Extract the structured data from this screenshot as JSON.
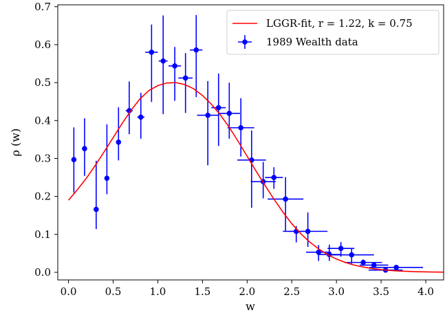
{
  "chart_data": {
    "type": "scatter",
    "xlabel": "w",
    "ylabel": "ρ (w)",
    "xlim": [
      -0.12,
      4.2
    ],
    "ylim": [
      -0.02,
      0.705
    ],
    "xticks": [
      0.0,
      0.5,
      1.0,
      1.5,
      2.0,
      2.5,
      3.0,
      3.5,
      4.0
    ],
    "xtick_labels": [
      "0.0",
      "0.5",
      "1.0",
      "1.5",
      "2.0",
      "2.5",
      "3.0",
      "3.5",
      "4.0"
    ],
    "yticks": [
      0.0,
      0.1,
      0.2,
      0.3,
      0.4,
      0.5,
      0.6,
      0.7
    ],
    "ytick_labels": [
      "0.0",
      "0.1",
      "0.2",
      "0.3",
      "0.4",
      "0.5",
      "0.6",
      "0.7"
    ],
    "grid": false,
    "legend_position": "top-right",
    "series": [
      {
        "name": "LGGR-fit, r = 1.22, k = 0.75",
        "kind": "line",
        "color": "#ff0000",
        "x": [
          0.0,
          0.1,
          0.2,
          0.3,
          0.4,
          0.5,
          0.6,
          0.7,
          0.8,
          0.9,
          1.0,
          1.1,
          1.2,
          1.3,
          1.4,
          1.5,
          1.6,
          1.7,
          1.8,
          1.9,
          2.0,
          2.1,
          2.2,
          2.3,
          2.4,
          2.5,
          2.6,
          2.7,
          2.8,
          2.9,
          3.0,
          3.1,
          3.2,
          3.3,
          3.4,
          3.5,
          3.6,
          3.7,
          3.8,
          3.9,
          4.0,
          4.1,
          4.2
        ],
        "y": [
          0.19,
          0.218,
          0.248,
          0.282,
          0.318,
          0.355,
          0.392,
          0.427,
          0.457,
          0.479,
          0.492,
          0.499,
          0.5,
          0.495,
          0.484,
          0.466,
          0.443,
          0.415,
          0.382,
          0.345,
          0.306,
          0.267,
          0.229,
          0.193,
          0.159,
          0.128,
          0.102,
          0.08,
          0.062,
          0.047,
          0.035,
          0.026,
          0.019,
          0.014,
          0.01,
          0.007,
          0.005,
          0.0035,
          0.0025,
          0.0017,
          0.0012,
          0.0008,
          0.0005
        ]
      },
      {
        "name": "1989 Wealth data",
        "kind": "errorbar",
        "color": "#0000ff",
        "points": [
          {
            "x": 0.06,
            "y": 0.297,
            "xerr": 0.0,
            "yerr": [
              0.087,
              0.085
            ]
          },
          {
            "x": 0.18,
            "y": 0.326,
            "xerr": 0.0,
            "yerr": [
              0.072,
              0.08
            ]
          },
          {
            "x": 0.31,
            "y": 0.166,
            "xerr": 0.0,
            "yerr": [
              0.052,
              0.128
            ]
          },
          {
            "x": 0.43,
            "y": 0.248,
            "xerr": 0.0,
            "yerr": [
              0.042,
              0.142
            ]
          },
          {
            "x": 0.56,
            "y": 0.343,
            "xerr": 0.0,
            "yerr": [
              0.048,
              0.092
            ]
          },
          {
            "x": 0.68,
            "y": 0.426,
            "xerr": 0.04,
            "yerr": [
              0.062,
              0.077
            ]
          },
          {
            "x": 0.81,
            "y": 0.409,
            "xerr": 0.04,
            "yerr": [
              0.057,
              0.064
            ]
          },
          {
            "x": 0.93,
            "y": 0.58,
            "xerr": 0.07,
            "yerr": [
              0.131,
              0.073
            ]
          },
          {
            "x": 1.06,
            "y": 0.557,
            "xerr": 0.05,
            "yerr": [
              0.14,
              0.12
            ]
          },
          {
            "x": 1.19,
            "y": 0.544,
            "xerr": 0.07,
            "yerr": [
              0.092,
              0.05
            ]
          },
          {
            "x": 1.31,
            "y": 0.512,
            "xerr": 0.08,
            "yerr": [
              0.092,
              0.066
            ]
          },
          {
            "x": 1.43,
            "y": 0.586,
            "xerr": 0.07,
            "yerr": [
              0.124,
              0.092
            ]
          },
          {
            "x": 1.56,
            "y": 0.414,
            "xerr": 0.12,
            "yerr": [
              0.132,
              0.09
            ]
          },
          {
            "x": 1.68,
            "y": 0.434,
            "xerr": 0.08,
            "yerr": [
              0.101,
              0.09
            ]
          },
          {
            "x": 1.8,
            "y": 0.419,
            "xerr": 0.12,
            "yerr": [
              0.067,
              0.081
            ]
          },
          {
            "x": 1.93,
            "y": 0.381,
            "xerr": 0.15,
            "yerr": [
              0.076,
              0.078
            ]
          },
          {
            "x": 2.05,
            "y": 0.296,
            "xerr": 0.16,
            "yerr": [
              0.126,
              0.078
            ]
          },
          {
            "x": 2.18,
            "y": 0.239,
            "xerr": 0.14,
            "yerr": [
              0.044,
              0.052
            ]
          },
          {
            "x": 2.3,
            "y": 0.25,
            "xerr": 0.1,
            "yerr": [
              0.03,
              0.027
            ]
          },
          {
            "x": 2.43,
            "y": 0.193,
            "xerr": 0.2,
            "yerr": [
              0.084,
              0.058
            ]
          },
          {
            "x": 2.55,
            "y": 0.108,
            "xerr": 0.15,
            "yerr": [
              0.029,
              0.014
            ]
          },
          {
            "x": 2.68,
            "y": 0.108,
            "xerr": 0.22,
            "yerr": [
              0.041,
              0.05
            ]
          },
          {
            "x": 2.8,
            "y": 0.053,
            "xerr": 0.14,
            "yerr": [
              0.023,
              0.019
            ]
          },
          {
            "x": 2.92,
            "y": 0.047,
            "xerr": 0.13,
            "yerr": [
              0.017,
              0.026
            ]
          },
          {
            "x": 3.05,
            "y": 0.063,
            "xerr": 0.15,
            "yerr": [
              0.022,
              0.017
            ]
          },
          {
            "x": 3.17,
            "y": 0.046,
            "xerr": 0.25,
            "yerr": [
              0.023,
              0.018
            ]
          },
          {
            "x": 3.3,
            "y": 0.026,
            "xerr": 0.21,
            "yerr": [
              0.009,
              0.008
            ]
          },
          {
            "x": 3.42,
            "y": 0.019,
            "xerr": 0.16,
            "yerr": [
              0.007,
              0.006
            ]
          },
          {
            "x": 3.55,
            "y": 0.006,
            "xerr": 0.19,
            "yerr": [
              0.004,
              0.004
            ]
          },
          {
            "x": 3.67,
            "y": 0.013,
            "xerr": 0.3,
            "yerr": [
              0.005,
              0.005
            ]
          }
        ]
      }
    ]
  }
}
